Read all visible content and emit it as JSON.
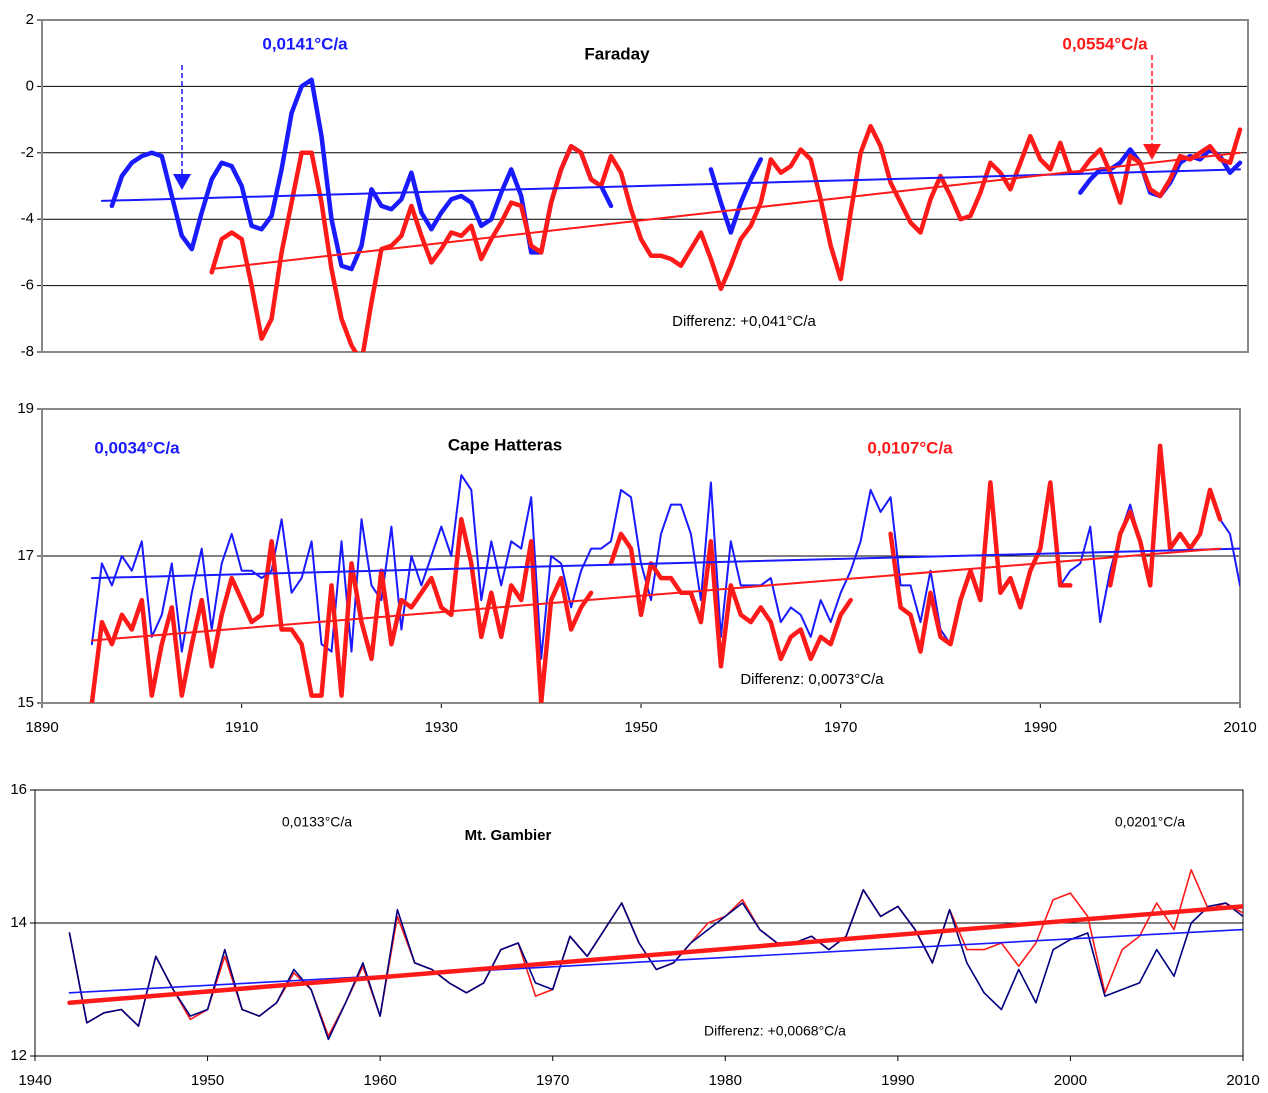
{
  "chart_data": [
    {
      "type": "line",
      "title": "Faraday",
      "annotations": [
        {
          "text": "0,0141°C/a",
          "color": "#1a1aff"
        },
        {
          "text": "0,0554°C/a",
          "color": "#ff1a1a"
        },
        {
          "text": "Differenz: +0,041°C/a",
          "color": "#000000"
        }
      ],
      "xlim": [
        1890,
        2010
      ],
      "ylim": [
        -8,
        2
      ],
      "yticks": [
        2,
        0,
        -2,
        -4,
        -6,
        -8
      ],
      "grid": true,
      "x": [
        1897,
        1898,
        1899,
        1900,
        1901,
        1902,
        1903,
        1904,
        1905,
        1906,
        1907,
        1908,
        1909,
        1910,
        1911,
        1912,
        1913,
        1914,
        1915,
        1916,
        1917,
        1918,
        1919,
        1920,
        1921,
        1922,
        1923,
        1924,
        1925,
        1926,
        1927,
        1928,
        1929,
        1930,
        1931,
        1932,
        1933,
        1934,
        1935,
        1936,
        1937,
        1938,
        1939,
        1940,
        1941,
        1942,
        1943,
        1944,
        1945,
        1946,
        1947,
        1948,
        1949,
        1950,
        1951,
        1952,
        1953,
        1954,
        1955,
        1956,
        1957,
        1958,
        1959,
        1960,
        1961,
        1962,
        1963,
        1964,
        1965,
        1966,
        1967,
        1968,
        1969,
        1970,
        1971,
        1972,
        1973,
        1974,
        1975,
        1976,
        1977,
        1978,
        1979,
        1980,
        1981,
        1982,
        1983,
        1984,
        1985,
        1986,
        1987,
        1988,
        1989,
        1990,
        1991,
        1992,
        1993,
        1994,
        1995,
        1996,
        1997,
        1998,
        1999,
        2000,
        2001,
        2002,
        2003,
        2004,
        2005,
        2006,
        2007,
        2008,
        2009,
        2010
      ],
      "series": [
        {
          "color": "#1a1aff",
          "style": "thick",
          "values": [
            -3.6,
            -2.7,
            -2.3,
            -2.1,
            -2.0,
            -2.1,
            -3.3,
            -4.5,
            -4.9,
            -3.8,
            -2.8,
            -2.3,
            -2.4,
            -3.0,
            -4.2,
            -4.3,
            -3.9,
            -2.5,
            -0.8,
            0.0,
            0.2,
            -1.5,
            -4.0,
            -5.4,
            -5.5,
            -4.8,
            -3.1,
            -3.6,
            -3.7,
            -3.4,
            -2.6,
            -3.8,
            -4.3,
            -3.8,
            -3.4,
            -3.3,
            -3.5,
            -4.2,
            -4.0,
            -3.2,
            -2.5,
            -3.3,
            -5.0,
            -5.0,
            -3.5,
            -2.5,
            -1.8,
            -2.0,
            -2.8,
            -3.0,
            -3.6,
            null,
            null,
            null,
            null,
            null,
            null,
            null,
            null,
            null,
            -2.5,
            -3.5,
            -4.4,
            -3.5,
            -2.8,
            -2.2,
            null,
            null,
            null,
            null,
            null,
            null,
            null,
            null,
            null,
            null,
            null,
            null,
            null,
            null,
            null,
            null,
            null,
            null,
            null,
            null,
            null,
            null,
            null,
            null,
            null,
            null,
            null,
            null,
            null,
            null,
            null,
            -3.2,
            -2.8,
            -2.5,
            -2.5,
            -2.3,
            -1.9,
            -2.3,
            -3.2,
            -3.3,
            -2.9,
            -2.3,
            -2.1,
            -2.2,
            -1.9,
            -2.1,
            -2.6,
            -2.3
          ]
        },
        {
          "color": "#ff1a1a",
          "style": "thick",
          "values": [
            null,
            null,
            null,
            null,
            null,
            null,
            null,
            null,
            null,
            null,
            -5.6,
            -4.6,
            -4.4,
            -4.6,
            -6.0,
            -7.6,
            -7.0,
            -5.0,
            -3.5,
            -2.0,
            -2.0,
            -3.5,
            -5.5,
            -7.0,
            -7.8,
            -8.3,
            -6.5,
            -4.9,
            -4.8,
            -4.5,
            -3.6,
            -4.5,
            -5.3,
            -4.9,
            -4.4,
            -4.5,
            -4.2,
            -5.2,
            -4.6,
            -4.1,
            -3.5,
            -3.6,
            -4.8,
            -5.0,
            -3.5,
            -2.5,
            -1.8,
            -2.0,
            -2.8,
            -3.0,
            -2.1,
            -2.6,
            -3.7,
            -4.6,
            -5.1,
            -5.1,
            -5.2,
            -5.4,
            -4.9,
            -4.4,
            -5.2,
            -6.1,
            -5.4,
            -4.6,
            -4.2,
            -3.5,
            -2.2,
            -2.6,
            -2.4,
            -1.9,
            -2.2,
            -3.4,
            -4.8,
            -5.8,
            -3.8,
            -2.0,
            -1.2,
            -1.8,
            -2.9,
            -3.5,
            -4.1,
            -4.4,
            -3.4,
            -2.7,
            -3.3,
            -4.0,
            -3.9,
            -3.2,
            -2.3,
            -2.6,
            -3.1,
            -2.3,
            -1.5,
            -2.2,
            -2.5,
            -1.7,
            -2.6,
            -2.6,
            -2.2,
            -1.9,
            -2.6,
            -3.5,
            -2.1,
            -2.3,
            -3.1,
            -3.3,
            -2.8,
            -2.1,
            -2.2,
            -2.0,
            -1.8,
            -2.2,
            -2.3,
            -1.3
          ]
        }
      ],
      "trends": [
        {
          "color": "#1a1aff",
          "style": "thin",
          "x": [
            1896,
            2010
          ],
          "values": [
            -3.45,
            -2.5
          ]
        },
        {
          "color": "#ff1a1a",
          "style": "thin",
          "x": [
            1907,
            2010
          ],
          "values": [
            -5.5,
            -2.0
          ]
        }
      ]
    },
    {
      "type": "line",
      "title": "Cape Hatteras",
      "annotations": [
        {
          "text": "0,0034°C/a",
          "color": "#1a1aff"
        },
        {
          "text": "0,0107°C/a",
          "color": "#ff1a1a"
        },
        {
          "text": "Differenz: 0,0073°C/a",
          "color": "#000000"
        }
      ],
      "xlim": [
        1890,
        2010
      ],
      "xticks": [
        1890,
        1910,
        1930,
        1950,
        1970,
        1990,
        2010
      ],
      "ylim": [
        15,
        19
      ],
      "yticks": [
        15,
        17,
        19
      ],
      "grid": true,
      "x": [
        1895,
        1896,
        1897,
        1898,
        1899,
        1900,
        1901,
        1902,
        1903,
        1904,
        1905,
        1906,
        1907,
        1908,
        1909,
        1910,
        1911,
        1912,
        1913,
        1914,
        1915,
        1916,
        1917,
        1918,
        1919,
        1920,
        1921,
        1922,
        1923,
        1924,
        1925,
        1926,
        1927,
        1928,
        1929,
        1930,
        1931,
        1932,
        1933,
        1934,
        1935,
        1936,
        1937,
        1938,
        1939,
        1940,
        1941,
        1942,
        1943,
        1944,
        1945,
        1946,
        1947,
        1948,
        1949,
        1950,
        1951,
        1952,
        1953,
        1954,
        1955,
        1956,
        1957,
        1958,
        1959,
        1960,
        1961,
        1962,
        1963,
        1964,
        1965,
        1966,
        1967,
        1968,
        1969,
        1970,
        1971,
        1972,
        1973,
        1974,
        1975,
        1976,
        1977,
        1978,
        1979,
        1980,
        1981,
        1982,
        1983,
        1984,
        1985,
        1986,
        1987,
        1988,
        1989,
        1990,
        1991,
        1992,
        1993,
        1994,
        1995,
        1996,
        1997,
        1998,
        1999,
        2000,
        2001,
        2002,
        2003,
        2004,
        2005,
        2006,
        2007,
        2008,
        2009,
        2010
      ],
      "series": [
        {
          "color": "#1a1aff",
          "style": "thin",
          "values": [
            15.8,
            16.9,
            16.6,
            17.0,
            16.8,
            17.2,
            15.9,
            16.2,
            16.9,
            15.7,
            16.5,
            17.1,
            16.0,
            16.9,
            17.3,
            16.8,
            16.8,
            16.7,
            16.8,
            17.5,
            16.5,
            16.7,
            17.2,
            15.8,
            15.7,
            17.2,
            15.7,
            17.5,
            16.6,
            16.4,
            17.4,
            16.0,
            17.0,
            16.6,
            17.0,
            17.4,
            17.0,
            18.1,
            17.9,
            16.4,
            17.2,
            16.6,
            17.2,
            17.1,
            17.8,
            15.6,
            17.0,
            16.9,
            16.3,
            16.8,
            17.1,
            17.1,
            17.2,
            17.9,
            17.8,
            16.9,
            16.4,
            17.3,
            17.7,
            17.7,
            17.3,
            16.4,
            18.0,
            15.9,
            17.2,
            16.6,
            16.6,
            16.6,
            16.7,
            16.1,
            16.3,
            16.2,
            15.9,
            16.4,
            16.1,
            16.5,
            16.8,
            17.2,
            17.9,
            17.6,
            17.8,
            16.6,
            16.6,
            16.1,
            16.8,
            16.0,
            15.8,
            16.4,
            16.8,
            16.4,
            18.0,
            16.5,
            16.7,
            16.3,
            16.8,
            17.1,
            18.0,
            16.6,
            16.8,
            16.9,
            17.4,
            16.1,
            16.8,
            17.3,
            17.7,
            17.2,
            16.6,
            18.5,
            17.1,
            17.3,
            17.1,
            17.3,
            17.9,
            17.5,
            17.3,
            16.6
          ]
        },
        {
          "color": "#ff1a1a",
          "style": "thick",
          "values": [
            15.0,
            16.1,
            15.8,
            16.2,
            16.0,
            16.4,
            15.1,
            15.8,
            16.3,
            15.1,
            15.8,
            16.4,
            15.5,
            16.2,
            16.7,
            16.4,
            16.1,
            16.2,
            17.2,
            16.0,
            16.0,
            15.8,
            15.1,
            15.1,
            16.6,
            15.1,
            16.9,
            16.1,
            15.6,
            16.8,
            15.8,
            16.4,
            16.3,
            16.5,
            16.7,
            16.3,
            16.2,
            17.5,
            16.9,
            15.9,
            16.5,
            15.9,
            16.6,
            16.4,
            17.2,
            15.0,
            16.4,
            16.7,
            16.0,
            16.3,
            16.5,
            null,
            16.9,
            17.3,
            17.1,
            16.2,
            16.9,
            16.7,
            16.7,
            16.5,
            16.5,
            16.1,
            17.2,
            15.5,
            16.6,
            16.2,
            16.1,
            16.3,
            16.1,
            15.6,
            15.9,
            16.0,
            15.6,
            15.9,
            15.8,
            16.2,
            16.4,
            null,
            null,
            null,
            17.3,
            16.3,
            16.2,
            15.7,
            16.5,
            15.9,
            15.8,
            16.4,
            16.8,
            16.4,
            18.0,
            16.5,
            16.7,
            16.3,
            16.8,
            17.1,
            18.0,
            16.6,
            16.6,
            null,
            null,
            null,
            16.6,
            17.3,
            17.6,
            17.2,
            16.6,
            18.5,
            17.1,
            17.3,
            17.1,
            17.3,
            17.9,
            17.5,
            null,
            null
          ]
        }
      ],
      "trends": [
        {
          "color": "#1a1aff",
          "style": "thin",
          "x": [
            1895,
            2010
          ],
          "values": [
            16.7,
            17.1
          ]
        },
        {
          "color": "#ff1a1a",
          "style": "thin",
          "x": [
            1895,
            2008
          ],
          "values": [
            15.85,
            17.1
          ]
        }
      ]
    },
    {
      "type": "line",
      "title": "Mt. Gambier",
      "annotations": [
        {
          "text": "0,0133°C/a",
          "color": "#000000"
        },
        {
          "text": "0,0201°C/a",
          "color": "#000000"
        },
        {
          "text": "Differenz: +0,0068°C/a",
          "color": "#000000"
        }
      ],
      "xlim": [
        1940,
        2010
      ],
      "xticks": [
        1940,
        1950,
        1960,
        1970,
        1980,
        1990,
        2000,
        2010
      ],
      "ylim": [
        12,
        16
      ],
      "yticks": [
        12,
        14,
        16
      ],
      "grid": true,
      "x": [
        1942,
        1943,
        1944,
        1945,
        1946,
        1947,
        1948,
        1949,
        1950,
        1951,
        1952,
        1953,
        1954,
        1955,
        1956,
        1957,
        1958,
        1959,
        1960,
        1961,
        1962,
        1963,
        1964,
        1965,
        1966,
        1967,
        1968,
        1969,
        1970,
        1971,
        1972,
        1973,
        1974,
        1975,
        1976,
        1977,
        1978,
        1979,
        1980,
        1981,
        1982,
        1983,
        1984,
        1985,
        1986,
        1987,
        1988,
        1989,
        1990,
        1991,
        1992,
        1993,
        1994,
        1995,
        1996,
        1997,
        1998,
        1999,
        2000,
        2001,
        2002,
        2003,
        2004,
        2005,
        2006,
        2007,
        2008,
        2009,
        2010
      ],
      "series": [
        {
          "color": "#ff1a1a",
          "style": "hair",
          "values": [
            13.85,
            12.5,
            12.65,
            12.7,
            12.45,
            13.5,
            13.0,
            12.55,
            12.7,
            13.5,
            12.7,
            12.6,
            12.8,
            13.25,
            13.0,
            12.3,
            12.8,
            13.35,
            12.6,
            14.1,
            13.4,
            13.3,
            13.1,
            12.95,
            13.1,
            13.6,
            13.7,
            12.9,
            13.0,
            13.8,
            13.5,
            13.9,
            14.3,
            13.7,
            13.3,
            13.4,
            13.7,
            14.0,
            14.1,
            14.35,
            13.9,
            13.7,
            13.7,
            13.8,
            13.6,
            13.8,
            14.5,
            14.1,
            14.25,
            13.9,
            13.4,
            14.2,
            13.6,
            13.6,
            13.7,
            13.35,
            13.7,
            14.35,
            14.45,
            14.1,
            12.95,
            13.6,
            13.8,
            14.3,
            13.9,
            14.8,
            14.2,
            14.3,
            14.15
          ]
        },
        {
          "color": "#000080",
          "style": "hair",
          "values": [
            13.85,
            12.5,
            12.65,
            12.7,
            12.45,
            13.5,
            13.0,
            12.6,
            12.7,
            13.6,
            12.7,
            12.6,
            12.8,
            13.3,
            13.0,
            12.25,
            12.8,
            13.4,
            12.6,
            14.2,
            13.4,
            13.3,
            13.1,
            12.95,
            13.1,
            13.6,
            13.7,
            13.1,
            13.0,
            13.8,
            13.5,
            13.9,
            14.3,
            13.7,
            13.3,
            13.4,
            13.7,
            13.9,
            14.1,
            14.3,
            13.9,
            13.7,
            13.7,
            13.8,
            13.6,
            13.8,
            14.5,
            14.1,
            14.25,
            13.9,
            13.4,
            14.2,
            13.4,
            12.95,
            12.7,
            13.3,
            12.8,
            13.6,
            13.75,
            13.85,
            12.9,
            13.0,
            13.1,
            13.6,
            13.2,
            14.0,
            14.25,
            14.3,
            14.1
          ]
        }
      ],
      "trends": [
        {
          "color": "#1a1aff",
          "style": "hair",
          "x": [
            1942,
            2010
          ],
          "values": [
            12.95,
            13.9
          ]
        },
        {
          "color": "#ff1a1a",
          "style": "thick",
          "x": [
            1942,
            2010
          ],
          "values": [
            12.8,
            14.25
          ]
        }
      ]
    }
  ]
}
